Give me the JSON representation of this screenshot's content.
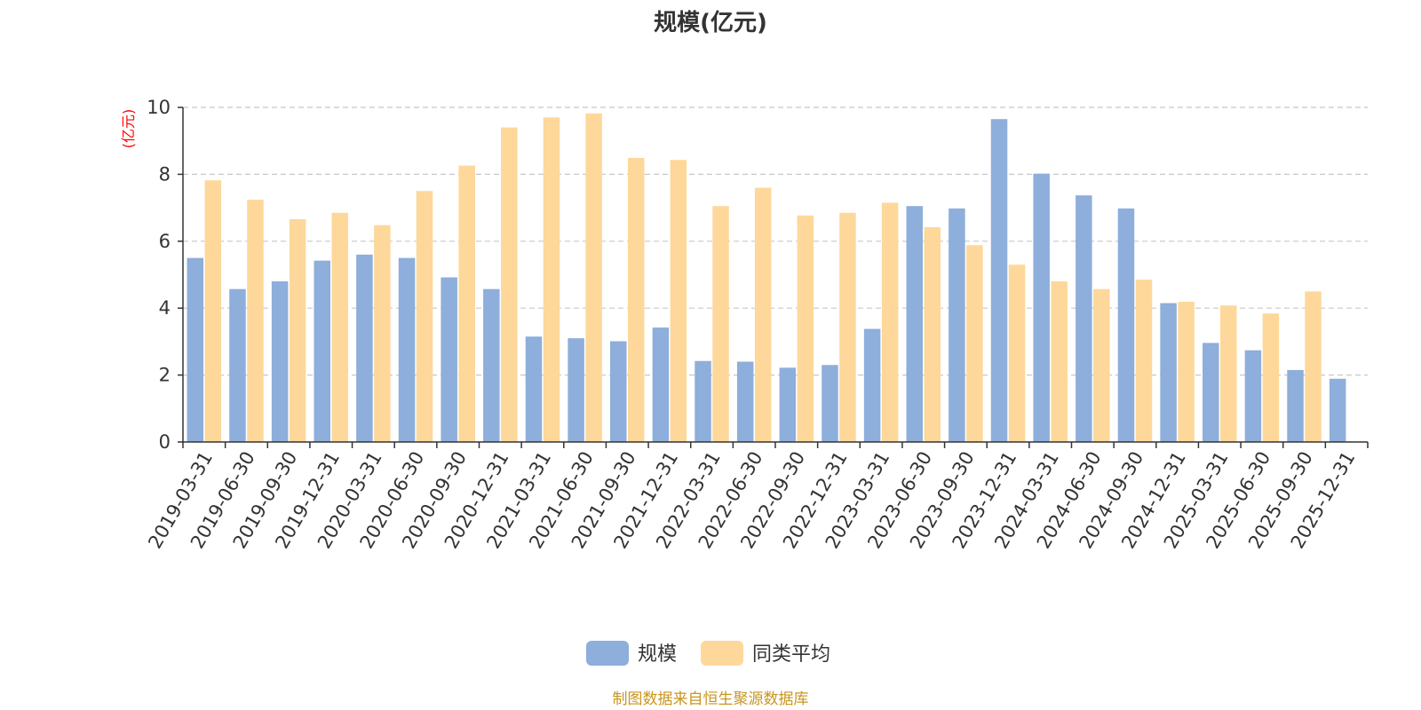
{
  "chart_data": {
    "type": "bar",
    "title": "规模(亿元)",
    "ylabel": "(亿元)",
    "xlabel": "",
    "ylim": [
      0,
      10
    ],
    "yticks": [
      0,
      2,
      4,
      6,
      8,
      10
    ],
    "grid": true,
    "legend_position": "bottom-center",
    "categories": [
      "2019-03-31",
      "2019-06-30",
      "2019-09-30",
      "2019-12-31",
      "2020-03-31",
      "2020-06-30",
      "2020-09-30",
      "2020-12-31",
      "2021-03-31",
      "2021-06-30",
      "2021-09-30",
      "2021-12-31",
      "2022-03-31",
      "2022-06-30",
      "2022-09-30",
      "2022-12-31",
      "2023-03-31",
      "2023-06-30",
      "2023-09-30",
      "2023-12-31",
      "2024-03-31",
      "2024-06-30",
      "2024-09-30",
      "2024-12-31",
      "2025-03-31",
      "2025-06-30",
      "2025-09-30",
      "2025-12-31"
    ],
    "series": [
      {
        "name": "规模",
        "color": "#8eaedb",
        "values": [
          5.5,
          4.57,
          4.8,
          5.42,
          5.6,
          5.5,
          4.92,
          4.57,
          3.15,
          3.1,
          3.01,
          3.42,
          2.42,
          2.4,
          2.22,
          2.3,
          3.38,
          7.05,
          6.98,
          9.65,
          8.02,
          7.37,
          6.98,
          4.15,
          2.96,
          2.74,
          2.15,
          1.89
        ]
      },
      {
        "name": "同类平均",
        "color": "#fdd89a",
        "values": [
          7.82,
          7.24,
          6.66,
          6.85,
          6.48,
          7.5,
          8.26,
          9.4,
          9.7,
          9.82,
          8.49,
          8.43,
          7.05,
          7.6,
          6.77,
          6.85,
          7.15,
          6.42,
          5.88,
          5.3,
          4.8,
          4.57,
          4.85,
          4.19,
          4.08,
          3.84,
          4.5,
          null
        ]
      }
    ]
  },
  "footer": {
    "source": "制图数据来自恒生聚源数据库"
  }
}
